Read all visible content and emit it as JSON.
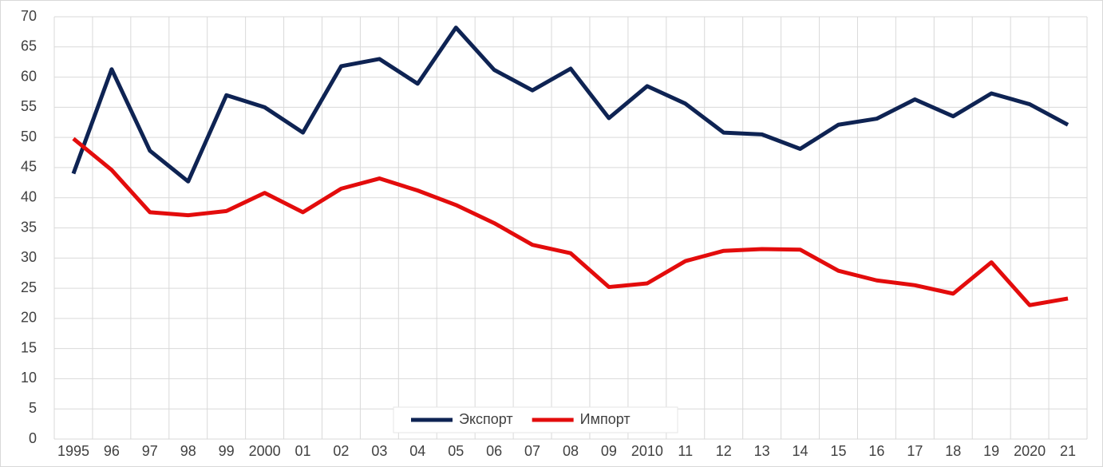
{
  "chart_data": {
    "type": "line",
    "categories": [
      "1995",
      "96",
      "97",
      "98",
      "99",
      "2000",
      "01",
      "02",
      "03",
      "04",
      "05",
      "06",
      "07",
      "08",
      "09",
      "2010",
      "11",
      "12",
      "13",
      "14",
      "15",
      "16",
      "17",
      "18",
      "19",
      "2020",
      "21"
    ],
    "series": [
      {
        "name": "Экспорт",
        "color": "#0e2353",
        "values": [
          44,
          61.3,
          47.8,
          42.7,
          57,
          55,
          50.8,
          61.8,
          63,
          58.9,
          68.2,
          61.2,
          57.8,
          61.4,
          53.2,
          58.5,
          55.6,
          50.8,
          50.5,
          48.1,
          52.1,
          53.1,
          56.3,
          53.5,
          57.3,
          55.5,
          52.1
        ]
      },
      {
        "name": "Импорт",
        "color": "#e30c0c",
        "values": [
          49.8,
          44.6,
          37.6,
          37.1,
          37.8,
          40.8,
          37.6,
          41.5,
          43.2,
          41.2,
          38.8,
          35.8,
          32.2,
          30.8,
          25.2,
          25.8,
          29.5,
          31.2,
          31.5,
          31.4,
          27.9,
          26.3,
          25.5,
          24.1,
          29.3,
          22.2,
          23.3
        ]
      }
    ],
    "ylim": [
      0,
      70
    ],
    "yticks": [
      0,
      5,
      10,
      15,
      20,
      25,
      30,
      35,
      40,
      45,
      50,
      55,
      60,
      65,
      70
    ],
    "grid": true,
    "legend": "bottom"
  }
}
